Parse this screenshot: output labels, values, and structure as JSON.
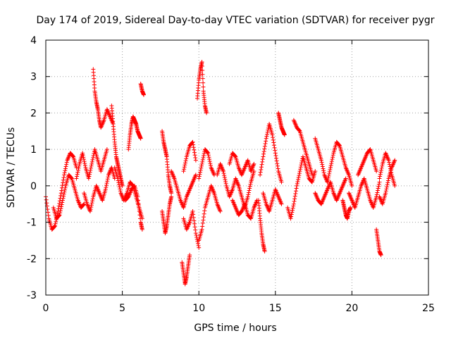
{
  "chart_data": {
    "type": "scatter",
    "title": "Day 174 of 2019, Sidereal Day-to-day VTEC variation (SDTVAR) for receiver pygr",
    "xlabel": "GPS time / hours",
    "ylabel": "SDTVAR / TECUs",
    "xlim": [
      0,
      25
    ],
    "ylim": [
      -3,
      4
    ],
    "xticks": [
      0,
      5,
      10,
      15,
      20,
      25
    ],
    "yticks": [
      -3,
      -2,
      -1,
      0,
      1,
      2,
      3,
      4
    ],
    "grid": true,
    "marker": "+",
    "series": [
      {
        "name": "SDTVAR",
        "color": "#ff0000",
        "segments": [
          {
            "x": [
              0.0,
              0.2,
              0.4,
              0.6,
              0.8,
              1.0,
              1.2,
              1.4,
              1.6,
              1.8,
              2.0
            ],
            "y": [
              -0.3,
              -0.9,
              -1.2,
              -1.1,
              -0.7,
              -0.2,
              0.3,
              0.7,
              0.9,
              0.8,
              0.5
            ]
          },
          {
            "x": [
              0.5,
              0.7,
              0.9,
              1.1,
              1.3,
              1.5,
              1.7,
              1.9,
              2.1,
              2.3,
              2.5
            ],
            "y": [
              -0.6,
              -0.9,
              -0.8,
              -0.4,
              0.0,
              0.3,
              0.2,
              -0.1,
              -0.4,
              -0.6,
              -0.5
            ]
          },
          {
            "x": [
              2.0,
              2.2,
              2.4,
              2.6,
              2.8,
              3.0,
              3.2,
              3.4,
              3.6,
              3.8,
              4.0
            ],
            "y": [
              0.2,
              0.6,
              0.9,
              0.5,
              0.2,
              0.6,
              1.0,
              0.7,
              0.4,
              0.7,
              1.0
            ]
          },
          {
            "x": [
              2.5,
              2.7,
              2.9,
              3.1,
              3.3,
              3.5,
              3.7,
              3.9,
              4.1,
              4.3,
              4.5
            ],
            "y": [
              -0.2,
              -0.5,
              -0.7,
              -0.3,
              0.0,
              -0.2,
              -0.4,
              -0.1,
              0.3,
              0.5,
              0.2
            ]
          },
          {
            "x": [
              3.1,
              3.2,
              3.3,
              3.4,
              3.5,
              3.6,
              3.8,
              4.0,
              4.2,
              4.4
            ],
            "y": [
              3.2,
              2.6,
              2.3,
              2.1,
              1.8,
              1.6,
              1.8,
              2.1,
              1.9,
              1.7
            ]
          },
          {
            "x": [
              4.3,
              4.4,
              4.5,
              4.6,
              4.7,
              4.8,
              4.9,
              5.0
            ],
            "y": [
              2.2,
              1.7,
              1.2,
              0.8,
              0.6,
              0.4,
              0.2,
              0.0
            ]
          },
          {
            "x": [
              4.5,
              4.7,
              4.9,
              5.1,
              5.3,
              5.5,
              5.7,
              5.9,
              6.1,
              6.3
            ],
            "y": [
              0.5,
              0.2,
              -0.2,
              -0.4,
              -0.2,
              0.1,
              0.0,
              -0.3,
              -0.6,
              -0.9
            ]
          },
          {
            "x": [
              5.4,
              5.5,
              5.6,
              5.7,
              5.8,
              5.9,
              6.0,
              6.1,
              6.2
            ],
            "y": [
              1.0,
              1.4,
              1.7,
              1.9,
              1.8,
              1.7,
              1.5,
              1.4,
              1.3
            ]
          },
          {
            "x": [
              5.2,
              5.4,
              5.6,
              5.8,
              6.0,
              6.2,
              6.3
            ],
            "y": [
              -0.4,
              -0.3,
              -0.1,
              0.0,
              -0.3,
              -1.0,
              -1.2
            ]
          },
          {
            "x": [
              6.2,
              6.3,
              6.4
            ],
            "y": [
              2.8,
              2.6,
              2.5
            ]
          },
          {
            "x": [
              7.6,
              7.7,
              7.8,
              7.9,
              8.0,
              8.1,
              8.2
            ],
            "y": [
              1.5,
              1.2,
              1.0,
              0.8,
              0.3,
              0.0,
              -0.2
            ]
          },
          {
            "x": [
              7.6,
              7.7,
              7.8,
              7.9,
              8.0,
              8.1,
              8.2
            ],
            "y": [
              -0.7,
              -1.0,
              -1.3,
              -1.1,
              -0.8,
              -0.5,
              -0.3
            ]
          },
          {
            "x": [
              8.2,
              8.4,
              8.6,
              8.8,
              9.0,
              9.2,
              9.4,
              9.6,
              9.8
            ],
            "y": [
              0.4,
              0.2,
              -0.1,
              -0.4,
              -0.6,
              -0.3,
              -0.1,
              0.1,
              0.3
            ]
          },
          {
            "x": [
              8.9,
              9.0,
              9.1,
              9.2,
              9.3,
              9.4
            ],
            "y": [
              -2.1,
              -2.4,
              -2.7,
              -2.5,
              -2.2,
              -1.9
            ]
          },
          {
            "x": [
              9.0,
              9.2,
              9.4,
              9.6,
              9.8,
              10.0
            ],
            "y": [
              -0.9,
              -1.2,
              -1.0,
              -0.7,
              -1.3,
              -1.7
            ]
          },
          {
            "x": [
              9.0,
              9.2,
              9.4,
              9.6,
              9.8
            ],
            "y": [
              0.4,
              0.8,
              1.1,
              1.2,
              0.7
            ]
          },
          {
            "x": [
              9.9,
              10.0,
              10.1,
              10.2,
              10.3,
              10.4,
              10.5
            ],
            "y": [
              2.4,
              2.9,
              3.2,
              3.4,
              2.6,
              2.2,
              2.0
            ]
          },
          {
            "x": [
              10.0,
              10.2,
              10.4,
              10.6,
              10.8,
              11.0,
              11.2,
              11.4
            ],
            "y": [
              -1.5,
              -1.2,
              -0.6,
              -0.3,
              0.0,
              -0.2,
              -0.5,
              -0.7
            ]
          },
          {
            "x": [
              10.0,
              10.2,
              10.4,
              10.6,
              10.8,
              11.0
            ],
            "y": [
              0.2,
              0.6,
              1.0,
              0.9,
              0.5,
              0.3
            ]
          },
          {
            "x": [
              11.2,
              11.4,
              11.6,
              11.8,
              12.0,
              12.2,
              12.4,
              12.6,
              12.8,
              13.0,
              13.2,
              13.4,
              13.6
            ],
            "y": [
              0.3,
              0.6,
              0.4,
              0.0,
              -0.3,
              -0.1,
              0.2,
              0.0,
              -0.3,
              -0.6,
              -0.3,
              0.1,
              0.4
            ]
          },
          {
            "x": [
              12.0,
              12.2,
              12.4,
              12.6,
              12.8,
              13.0,
              13.2,
              13.4,
              13.6
            ],
            "y": [
              0.6,
              0.9,
              0.8,
              0.5,
              0.3,
              0.5,
              0.7,
              0.4,
              0.6
            ]
          },
          {
            "x": [
              12.2,
              12.4,
              12.6,
              12.8,
              13.0,
              13.2,
              13.4,
              13.6,
              13.8
            ],
            "y": [
              -0.4,
              -0.6,
              -0.8,
              -0.7,
              -0.5,
              -0.8,
              -0.9,
              -0.6,
              -0.4
            ]
          },
          {
            "x": [
              13.9,
              14.0,
              14.1,
              14.2,
              14.3
            ],
            "y": [
              -0.4,
              -0.9,
              -1.3,
              -1.6,
              -1.8
            ]
          },
          {
            "x": [
              14.0,
              14.2,
              14.4,
              14.6,
              14.8,
              15.0,
              15.2,
              15.4
            ],
            "y": [
              0.3,
              0.8,
              1.3,
              1.7,
              1.4,
              0.9,
              0.4,
              0.1
            ]
          },
          {
            "x": [
              14.2,
              14.4,
              14.6,
              14.8,
              15.0,
              15.2,
              15.4
            ],
            "y": [
              -0.2,
              -0.5,
              -0.7,
              -0.4,
              -0.1,
              -0.3,
              -0.5
            ]
          },
          {
            "x": [
              15.2,
              15.3,
              15.4,
              15.5,
              15.6
            ],
            "y": [
              2.0,
              1.8,
              1.6,
              1.5,
              1.4
            ]
          },
          {
            "x": [
              15.8,
              16.0,
              16.2,
              16.4,
              16.6,
              16.8,
              17.0,
              17.2,
              17.4,
              17.6
            ],
            "y": [
              -0.6,
              -0.9,
              -0.5,
              0.0,
              0.4,
              0.8,
              0.5,
              0.2,
              0.1,
              0.4
            ]
          },
          {
            "x": [
              16.2,
              16.4,
              16.6,
              16.8,
              17.0,
              17.2,
              17.4
            ],
            "y": [
              1.8,
              1.6,
              1.5,
              1.2,
              0.9,
              0.6,
              0.3
            ]
          },
          {
            "x": [
              17.6,
              17.8,
              18.0,
              18.2,
              18.4,
              18.6,
              18.8,
              19.0,
              19.2,
              19.4,
              19.6,
              19.8,
              20.0
            ],
            "y": [
              1.3,
              1.0,
              0.7,
              0.3,
              0.1,
              0.5,
              0.9,
              1.2,
              1.1,
              0.8,
              0.5,
              0.3,
              0.0
            ]
          },
          {
            "x": [
              17.6,
              17.8,
              18.0,
              18.2,
              18.4,
              18.6,
              18.8,
              19.0,
              19.2,
              19.4,
              19.6
            ],
            "y": [
              -0.2,
              -0.4,
              -0.5,
              -0.3,
              -0.1,
              0.1,
              -0.2,
              -0.4,
              -0.2,
              0.0,
              0.2
            ]
          },
          {
            "x": [
              19.4,
              19.5,
              19.6,
              19.7,
              19.8,
              19.9
            ],
            "y": [
              -0.4,
              -0.6,
              -0.8,
              -0.9,
              -0.7,
              -0.6
            ]
          },
          {
            "x": [
              19.8,
              20.0,
              20.2,
              20.4,
              20.6,
              20.8,
              21.0,
              21.2,
              21.4,
              21.6,
              21.8
            ],
            "y": [
              -0.2,
              -0.4,
              -0.6,
              -0.3,
              0.0,
              0.2,
              -0.1,
              -0.4,
              -0.6,
              -0.3,
              0.1
            ]
          },
          {
            "x": [
              20.4,
              20.6,
              20.8,
              21.0,
              21.2,
              21.4,
              21.6
            ],
            "y": [
              0.3,
              0.5,
              0.7,
              0.9,
              1.0,
              0.7,
              0.4
            ]
          },
          {
            "x": [
              21.6,
              21.7,
              21.8,
              21.9
            ],
            "y": [
              -1.2,
              -1.5,
              -1.8,
              -1.9
            ]
          },
          {
            "x": [
              21.8,
              22.0,
              22.2,
              22.4,
              22.6,
              22.8
            ],
            "y": [
              0.2,
              0.6,
              0.9,
              0.7,
              0.3,
              0.0
            ]
          },
          {
            "x": [
              21.8,
              22.0,
              22.2,
              22.4,
              22.6,
              22.8
            ],
            "y": [
              -0.3,
              -0.5,
              -0.2,
              0.2,
              0.5,
              0.7
            ]
          }
        ]
      }
    ]
  }
}
